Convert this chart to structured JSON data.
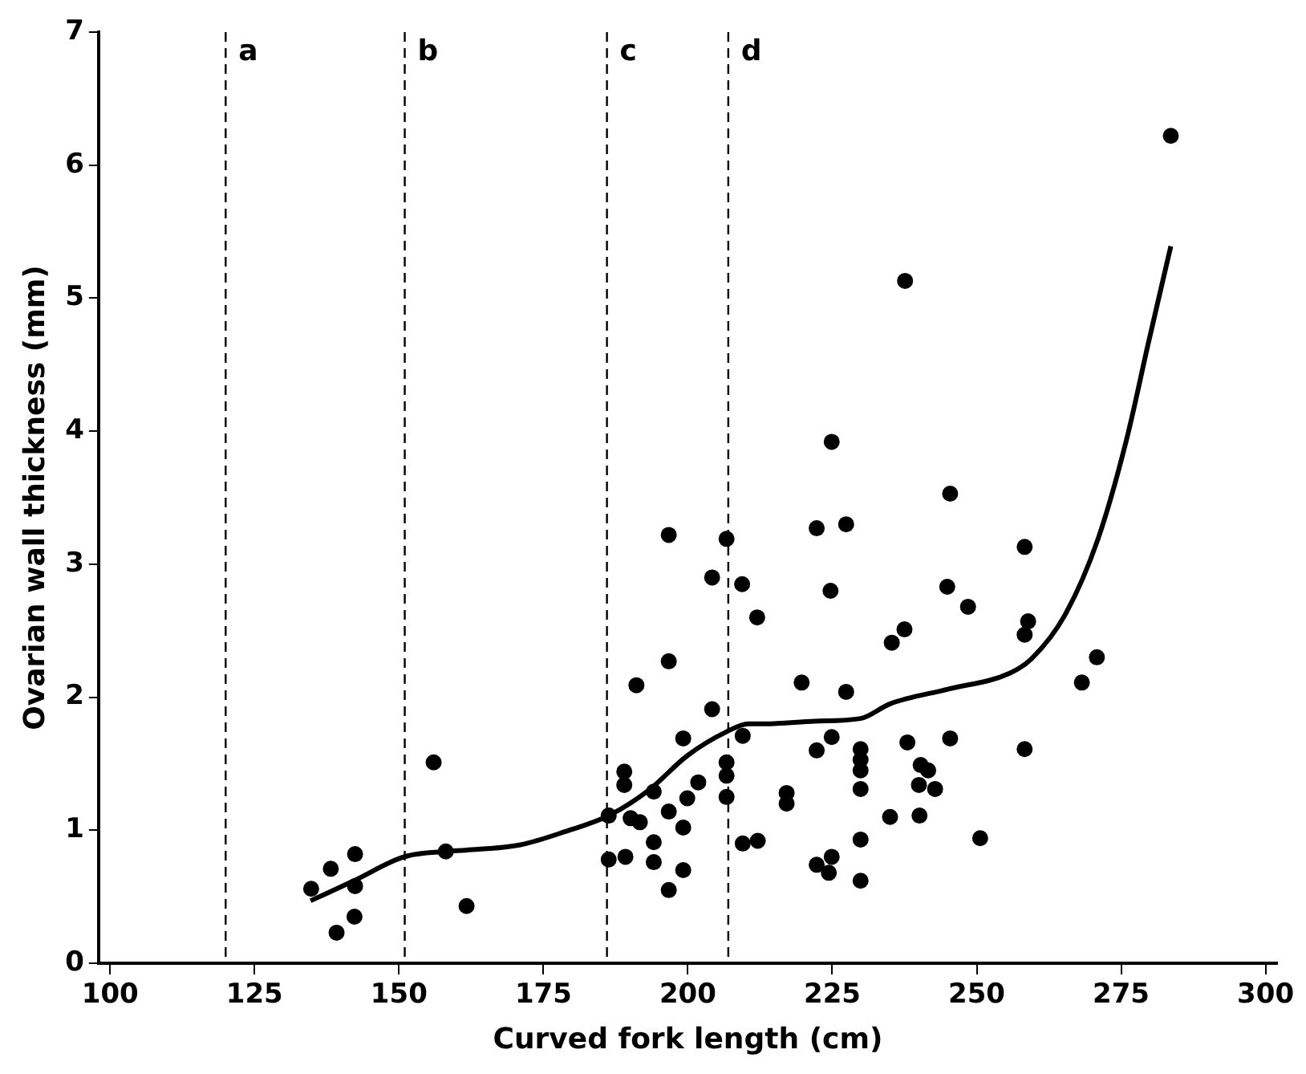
{
  "chart_data": {
    "type": "scatter",
    "xlabel": "Curved fork length (cm)",
    "ylabel": "Ovarian wall thickness (mm)",
    "xlim": [
      98,
      302
    ],
    "xticks": [
      100,
      125,
      150,
      175,
      200,
      225,
      250,
      275,
      300
    ],
    "ylim": [
      0,
      7
    ],
    "yticks": [
      0,
      1,
      2,
      3,
      4,
      5,
      6,
      7
    ],
    "grid": false,
    "legend": false,
    "marker": "circle",
    "ref_lines": [
      {
        "axis": "x",
        "value": 120,
        "label": "a",
        "line_style": "dashed",
        "color": "#000000"
      },
      {
        "axis": "x",
        "value": 151,
        "label": "b",
        "line_style": "dashed",
        "color": "#000000"
      },
      {
        "axis": "x",
        "value": 186,
        "label": "c",
        "line_style": "dashed",
        "color": "#000000"
      },
      {
        "axis": "x",
        "value": 207,
        "label": "d",
        "line_style": "dashed",
        "color": "#000000"
      }
    ],
    "series": [
      {
        "type": "scatter",
        "color": "#000000",
        "x": [
          134.8,
          138.2,
          142.4,
          142.4,
          142.3,
          139.2,
          156,
          161.7,
          158.1,
          196.7,
          206.7,
          204.2,
          209.4,
          212,
          196.7,
          191.1,
          204.2,
          199.2,
          209.5,
          189,
          189,
          206.7,
          206.7,
          206.7,
          201.8,
          194.1,
          199.9,
          196.7,
          190.1,
          191.7,
          199.2,
          186.3,
          194.1,
          209.5,
          212.1,
          186.3,
          189.2,
          194.1,
          199.2,
          196.7,
          217.1,
          217.1,
          224.9,
          222.3,
          227.4,
          224.7,
          219.7,
          227.4,
          224.9,
          222.3,
          229.9,
          229.9,
          229.9,
          229.9,
          229.9,
          222.3,
          224.4,
          224.9,
          229.9,
          245.4,
          258.3,
          244.9,
          248.5,
          237.5,
          235.3,
          258.9,
          258.3,
          238,
          245.4,
          240.3,
          241.6,
          240,
          242.8,
          235,
          240.1,
          250.6,
          258.3,
          237.6,
          283.6,
          270.8,
          268.2
        ],
        "values": [
          0.56,
          0.71,
          0.82,
          0.58,
          0.35,
          0.23,
          1.51,
          0.43,
          0.84,
          3.22,
          3.19,
          2.9,
          2.85,
          2.6,
          2.27,
          2.09,
          1.91,
          1.69,
          1.71,
          1.44,
          1.34,
          1.51,
          1.41,
          1.25,
          1.36,
          1.29,
          1.24,
          1.14,
          1.09,
          1.06,
          1.02,
          1.11,
          0.91,
          0.9,
          0.92,
          0.78,
          0.8,
          0.76,
          0.7,
          0.55,
          1.28,
          1.2,
          3.92,
          3.27,
          3.3,
          2.8,
          2.11,
          2.04,
          1.7,
          1.6,
          1.61,
          1.53,
          1.45,
          1.31,
          0.93,
          0.74,
          0.68,
          0.8,
          0.62,
          3.53,
          3.13,
          2.83,
          2.68,
          2.51,
          2.41,
          2.57,
          2.47,
          1.66,
          1.69,
          1.49,
          1.45,
          1.34,
          1.31,
          1.1,
          1.11,
          0.94,
          1.61,
          5.13,
          6.22,
          2.3,
          2.11
        ]
      },
      {
        "type": "line",
        "color": "#000000",
        "line_style": "solid",
        "marker": "none",
        "x": [
          134.7,
          142.2,
          150.9,
          158.1,
          161.5,
          171,
          178.8,
          186.3,
          193.2,
          199.9,
          206.7,
          210.5,
          213.4,
          222,
          229.9,
          235,
          245,
          255.7,
          259.5,
          265.3,
          271,
          275.9,
          279.7,
          283.6
        ],
        "values": [
          0.47,
          0.62,
          0.8,
          0.84,
          0.85,
          0.89,
          0.99,
          1.11,
          1.3,
          1.56,
          1.74,
          1.8,
          1.8,
          1.82,
          1.84,
          1.95,
          2.06,
          2.18,
          2.29,
          2.62,
          3.19,
          3.93,
          4.66,
          5.39
        ]
      }
    ]
  }
}
